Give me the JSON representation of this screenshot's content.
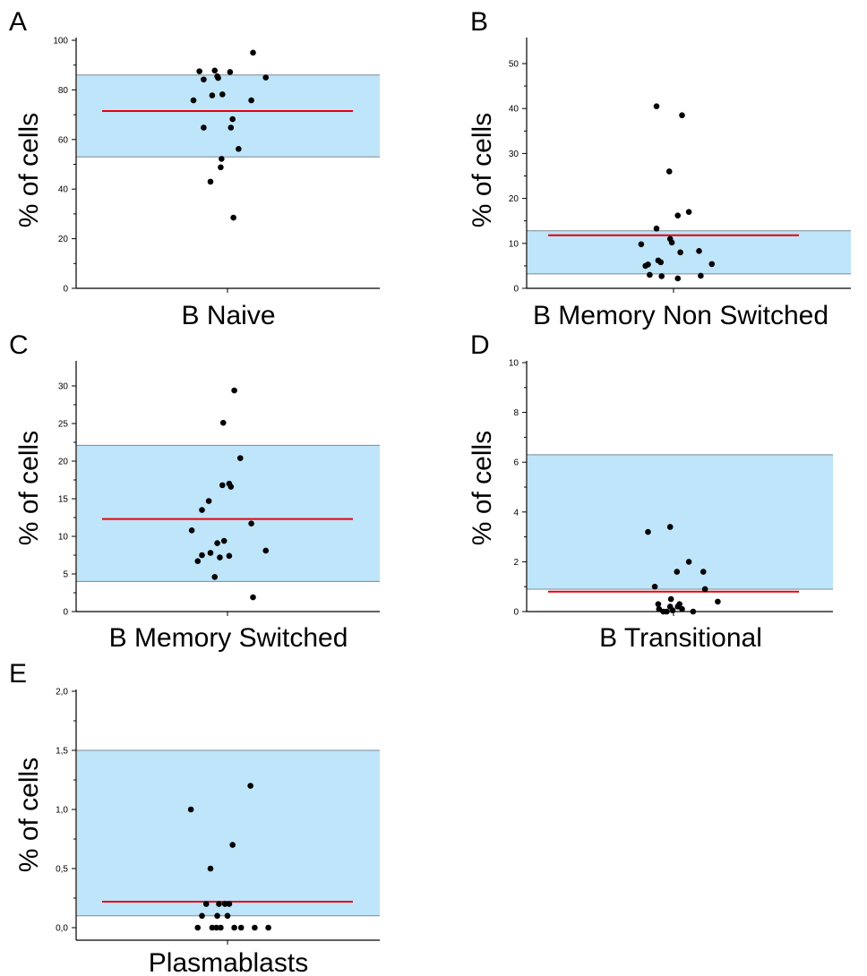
{
  "chart_data": [
    {
      "panel": "A",
      "type": "scatter",
      "xlabel": "B Naive",
      "ylabel": "% of cells",
      "ylim": [
        0,
        100
      ],
      "yticks": [
        "0",
        "20",
        "40",
        "60",
        "80",
        "100"
      ],
      "yticks_values": [
        0,
        20,
        40,
        60,
        80,
        100
      ],
      "reference_band": [
        53,
        86
      ],
      "median": 71.5,
      "band_color": "#bfe5fa",
      "median_color": "#e8000b",
      "points": [
        {
          "x": -0.4,
          "y": 75.8
        },
        {
          "x": -0.33,
          "y": 87.5
        },
        {
          "x": -0.28,
          "y": 84.2
        },
        {
          "x": -0.28,
          "y": 64.8
        },
        {
          "x": -0.18,
          "y": 77.8
        },
        {
          "x": -0.15,
          "y": 87.8
        },
        {
          "x": -0.12,
          "y": 85.5
        },
        {
          "x": -0.11,
          "y": 84.8
        },
        {
          "x": -0.06,
          "y": 78.2
        },
        {
          "x": -0.07,
          "y": 52.2
        },
        {
          "x": -0.08,
          "y": 48.8
        },
        {
          "x": 0.03,
          "y": 87.2
        },
        {
          "x": 0.04,
          "y": 64.8
        },
        {
          "x": 0.06,
          "y": 68.2
        },
        {
          "x": -0.2,
          "y": 43.0
        },
        {
          "x": 0.13,
          "y": 56.2
        },
        {
          "x": 0.07,
          "y": 28.5
        },
        {
          "x": 0.28,
          "y": 75.8
        },
        {
          "x": 0.3,
          "y": 95.0
        },
        {
          "x": 0.45,
          "y": 85.0
        }
      ]
    },
    {
      "panel": "B",
      "type": "scatter",
      "xlabel": "B Memory Non Switched",
      "ylabel": "% of cells",
      "ylim": [
        0,
        55
      ],
      "yticks": [
        "0",
        "10",
        "20",
        "30",
        "40",
        "50"
      ],
      "yticks_values": [
        0,
        10,
        20,
        30,
        40,
        50
      ],
      "reference_band": [
        3.2,
        12.8
      ],
      "median": 11.8,
      "band_color": "#bfe5fa",
      "median_color": "#e8000b",
      "points": [
        {
          "x": -0.38,
          "y": 9.8
        },
        {
          "x": -0.33,
          "y": 5.0
        },
        {
          "x": -0.3,
          "y": 5.3
        },
        {
          "x": -0.28,
          "y": 3.0
        },
        {
          "x": -0.2,
          "y": 13.3
        },
        {
          "x": -0.18,
          "y": 6.2
        },
        {
          "x": -0.15,
          "y": 5.8
        },
        {
          "x": -0.14,
          "y": 2.7
        },
        {
          "x": -0.2,
          "y": 40.5
        },
        {
          "x": -0.05,
          "y": 26.0
        },
        {
          "x": -0.04,
          "y": 11.0
        },
        {
          "x": -0.02,
          "y": 10.2
        },
        {
          "x": 0.05,
          "y": 16.2
        },
        {
          "x": 0.08,
          "y": 8.0
        },
        {
          "x": 0.05,
          "y": 2.2
        },
        {
          "x": 0.1,
          "y": 38.5
        },
        {
          "x": 0.18,
          "y": 17.0
        },
        {
          "x": 0.3,
          "y": 8.3
        },
        {
          "x": 0.32,
          "y": 2.8
        },
        {
          "x": 0.45,
          "y": 5.4
        }
      ]
    },
    {
      "panel": "C",
      "type": "scatter",
      "xlabel": "B Memory Switched",
      "ylabel": "% of cells",
      "ylim": [
        0,
        32
      ],
      "yticks": [
        "0",
        "5",
        "10",
        "15",
        "20",
        "25",
        "30"
      ],
      "yticks_values": [
        0,
        5,
        10,
        15,
        20,
        25,
        30
      ],
      "reference_band": [
        4.0,
        22.1
      ],
      "median": 12.3,
      "band_color": "#bfe5fa",
      "median_color": "#e8000b",
      "points": [
        {
          "x": -0.42,
          "y": 10.8
        },
        {
          "x": -0.35,
          "y": 6.7
        },
        {
          "x": -0.3,
          "y": 7.5
        },
        {
          "x": -0.3,
          "y": 13.5
        },
        {
          "x": -0.22,
          "y": 14.7
        },
        {
          "x": -0.2,
          "y": 7.8
        },
        {
          "x": -0.15,
          "y": 4.6
        },
        {
          "x": -0.12,
          "y": 9.1
        },
        {
          "x": -0.09,
          "y": 7.2
        },
        {
          "x": -0.06,
          "y": 16.8
        },
        {
          "x": -0.04,
          "y": 9.4
        },
        {
          "x": -0.05,
          "y": 25.1
        },
        {
          "x": 0.02,
          "y": 7.4
        },
        {
          "x": 0.02,
          "y": 17.0
        },
        {
          "x": 0.04,
          "y": 16.6
        },
        {
          "x": 0.08,
          "y": 29.4
        },
        {
          "x": 0.15,
          "y": 20.4
        },
        {
          "x": 0.28,
          "y": 11.7
        },
        {
          "x": 0.3,
          "y": 1.9
        },
        {
          "x": 0.45,
          "y": 8.1
        }
      ]
    },
    {
      "panel": "D",
      "type": "scatter",
      "xlabel": "B Transitional",
      "ylabel": "% of cells",
      "ylim": [
        0,
        10
      ],
      "yticks": [
        "0",
        "2",
        "4",
        "6",
        "8",
        "10"
      ],
      "yticks_values": [
        0,
        2,
        4,
        6,
        8,
        10
      ],
      "reference_band": [
        0.9,
        6.3
      ],
      "median": 0.8,
      "band_color": "#bfe5fa",
      "median_color": "#e8000b",
      "points": [
        {
          "x": -0.3,
          "y": 3.2
        },
        {
          "x": -0.22,
          "y": 1.0
        },
        {
          "x": -0.18,
          "y": 0.3
        },
        {
          "x": -0.17,
          "y": 0.1
        },
        {
          "x": -0.12,
          "y": 0.0
        },
        {
          "x": -0.08,
          "y": 0.0
        },
        {
          "x": -0.04,
          "y": 0.2
        },
        {
          "x": -0.03,
          "y": 0.5
        },
        {
          "x": -0.01,
          "y": 0.05
        },
        {
          "x": 0.04,
          "y": 1.6
        },
        {
          "x": 0.05,
          "y": 0.2
        },
        {
          "x": 0.07,
          "y": 0.3
        },
        {
          "x": 0.1,
          "y": 0.1
        },
        {
          "x": -0.04,
          "y": 3.4
        },
        {
          "x": 0.18,
          "y": 2.0
        },
        {
          "x": 0.23,
          "y": 0.0
        },
        {
          "x": 0.35,
          "y": 1.6
        },
        {
          "x": 0.37,
          "y": 0.9
        },
        {
          "x": 0.52,
          "y": 0.4
        }
      ]
    },
    {
      "panel": "E",
      "type": "scatter",
      "xlabel": "Plasmablasts",
      "ylabel": "% of cells",
      "ylim": [
        -0.05,
        2.0
      ],
      "yticks": [
        "0,0",
        "0,5",
        "1,0",
        "1,5",
        "2,0"
      ],
      "yticks_values": [
        0,
        0.5,
        1.0,
        1.5,
        2.0
      ],
      "reference_band": [
        0.1,
        1.5
      ],
      "median": 0.22,
      "band_color": "#bfe5fa",
      "median_color": "#e8000b",
      "points": [
        {
          "x": -0.43,
          "y": 1.0
        },
        {
          "x": -0.35,
          "y": 0.0
        },
        {
          "x": -0.3,
          "y": 0.1
        },
        {
          "x": -0.25,
          "y": 0.2
        },
        {
          "x": -0.2,
          "y": 0.5
        },
        {
          "x": -0.18,
          "y": 0.0
        },
        {
          "x": -0.13,
          "y": 0.0
        },
        {
          "x": -0.12,
          "y": 0.1
        },
        {
          "x": -0.1,
          "y": 0.2
        },
        {
          "x": -0.08,
          "y": 0.0
        },
        {
          "x": -0.03,
          "y": 0.2
        },
        {
          "x": 0.0,
          "y": 0.1
        },
        {
          "x": 0.02,
          "y": 0.2
        },
        {
          "x": 0.06,
          "y": 0.7
        },
        {
          "x": 0.08,
          "y": 0.0
        },
        {
          "x": 0.16,
          "y": 0.0
        },
        {
          "x": 0.27,
          "y": 1.2
        },
        {
          "x": 0.32,
          "y": 0.0
        },
        {
          "x": 0.48,
          "y": 0.0
        }
      ]
    }
  ]
}
